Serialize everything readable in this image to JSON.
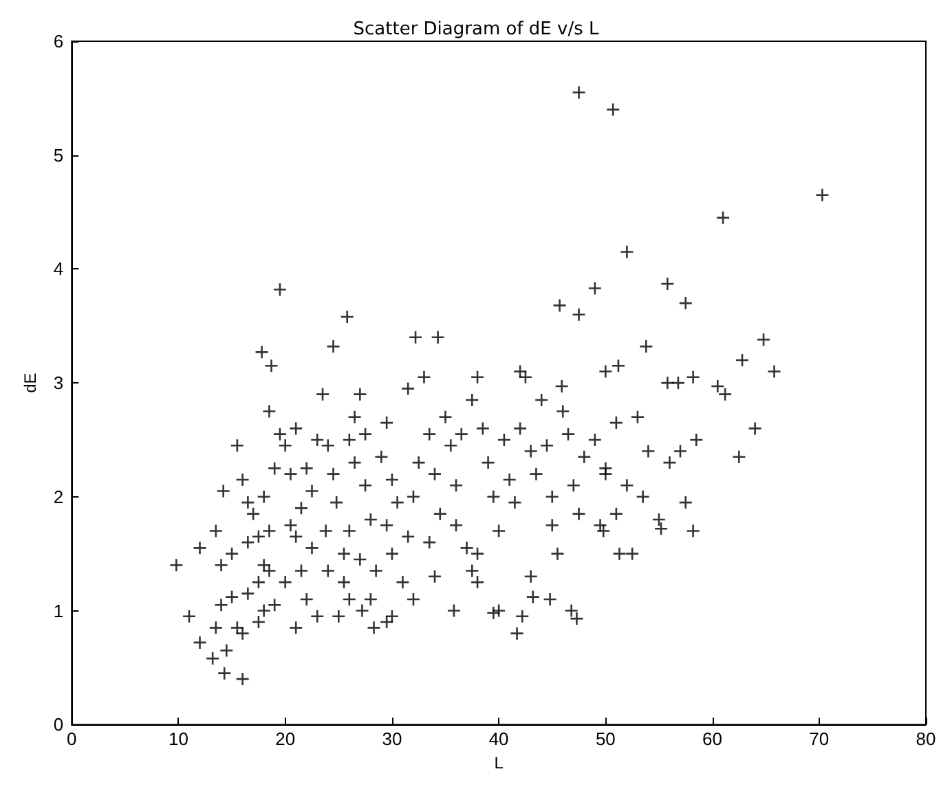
{
  "chart_data": {
    "type": "scatter",
    "title": "Scatter Diagram of dE v/s L",
    "xlabel": "L",
    "ylabel": "dE",
    "marker": "cross",
    "grid": false,
    "xlim": [
      0,
      80
    ],
    "xticks": [
      0,
      10,
      20,
      30,
      40,
      50,
      60,
      70,
      80
    ],
    "ylim": [
      0,
      6
    ],
    "yticks": [
      0,
      1,
      2,
      3,
      4,
      5,
      6
    ],
    "series": [
      {
        "color": "#000000",
        "x": [
          47.5,
          50.7,
          61,
          70.3,
          52,
          19.5,
          49,
          55.8,
          57.5,
          45.7,
          47.5,
          25.8,
          53.8,
          64.8,
          62.8,
          65.8,
          17.8,
          18.7,
          24.5,
          32.2,
          34.3,
          42,
          45.9,
          50,
          51.2,
          55.8,
          56.8,
          58.2,
          60.5,
          61.2,
          64,
          62.5,
          58.5,
          57.5,
          58.2,
          55.2,
          52.5,
          51.3,
          49.5,
          49.8,
          47.3,
          46.8,
          44.8,
          43.2,
          42.2,
          41.7,
          39.5,
          35.8,
          29.5,
          28.3,
          27.2,
          25,
          23,
          21,
          16,
          14.3,
          13.2,
          12,
          11,
          9.8,
          12,
          13.5,
          14.5,
          15.5,
          16,
          17.5,
          18,
          14,
          15,
          16.5,
          14,
          15,
          13.5,
          14.2,
          15.5,
          16,
          17,
          16.5,
          17.5,
          18.5,
          18,
          17.5,
          18.5,
          19,
          18,
          18.5,
          19.5,
          20,
          21,
          20.5,
          20.5,
          21,
          21.5,
          22,
          22.5,
          22.5,
          21.5,
          22,
          23,
          23.5,
          24,
          24.5,
          24.8,
          23.8,
          24,
          25.5,
          26,
          26.5,
          27,
          27.5,
          26.5,
          27.5,
          28,
          26,
          27,
          28.5,
          25.5,
          29,
          29.5,
          30,
          30.5,
          29.5,
          30,
          31,
          31.5,
          32,
          32.5,
          31.5,
          33,
          33.5,
          34,
          34.5,
          33.5,
          34,
          35,
          35.5,
          36,
          36,
          37,
          37.5,
          38,
          37.5,
          38,
          38.5,
          39,
          39.5,
          40,
          40.5,
          41,
          41.5,
          42,
          42.5,
          43,
          43.5,
          44,
          44.5,
          45,
          45,
          45.5,
          46,
          46.5,
          47,
          47.5,
          48,
          49,
          50,
          51,
          52,
          53,
          54,
          53.5,
          56,
          55,
          57,
          51,
          50,
          40,
          43,
          38,
          36.5,
          32,
          30,
          28,
          26,
          20,
          19,
          16.5
        ],
        "values": [
          5.55,
          5.4,
          4.45,
          4.65,
          4.15,
          3.82,
          3.83,
          3.87,
          3.7,
          3.68,
          3.6,
          3.58,
          3.32,
          3.38,
          3.2,
          3.1,
          3.27,
          3.15,
          3.32,
          3.4,
          3.4,
          3.1,
          2.97,
          3.1,
          3.15,
          3.0,
          3.0,
          3.05,
          2.97,
          2.9,
          2.6,
          2.35,
          2.5,
          1.95,
          1.7,
          1.72,
          1.5,
          1.5,
          1.75,
          1.7,
          0.93,
          1.0,
          1.1,
          1.12,
          0.95,
          0.8,
          0.98,
          1.0,
          0.9,
          0.85,
          1.0,
          0.95,
          0.95,
          0.85,
          0.4,
          0.45,
          0.58,
          0.72,
          0.95,
          1.4,
          1.55,
          0.85,
          0.65,
          0.85,
          0.8,
          0.9,
          1.0,
          1.05,
          1.12,
          1.15,
          1.4,
          1.5,
          1.7,
          2.05,
          2.45,
          2.15,
          1.85,
          1.6,
          1.65,
          1.7,
          1.4,
          1.25,
          1.35,
          2.25,
          2.0,
          2.75,
          2.55,
          2.45,
          2.6,
          2.2,
          1.75,
          1.65,
          1.9,
          2.25,
          2.05,
          1.55,
          1.35,
          1.1,
          2.5,
          2.9,
          2.45,
          2.2,
          1.95,
          1.7,
          1.35,
          1.5,
          2.5,
          2.7,
          2.9,
          2.55,
          2.3,
          2.1,
          1.8,
          1.7,
          1.45,
          1.35,
          1.25,
          2.35,
          2.65,
          2.15,
          1.95,
          1.75,
          1.5,
          1.25,
          1.65,
          2.0,
          2.3,
          2.95,
          3.05,
          2.55,
          2.2,
          1.85,
          1.6,
          1.3,
          2.7,
          2.45,
          2.1,
          1.75,
          1.55,
          1.35,
          1.25,
          2.85,
          3.05,
          2.6,
          2.3,
          2.0,
          1.7,
          2.5,
          2.15,
          1.95,
          2.6,
          3.05,
          2.4,
          2.2,
          2.85,
          2.45,
          2.0,
          1.75,
          1.5,
          2.75,
          2.55,
          2.1,
          1.85,
          2.35,
          2.5,
          2.25,
          2.65,
          2.1,
          2.7,
          2.4,
          2.0,
          2.3,
          1.8,
          2.4,
          1.85,
          2.2,
          1.0,
          1.3,
          1.5,
          2.55,
          1.1,
          0.95,
          1.1,
          1.1,
          1.25,
          1.05,
          1.95
        ]
      }
    ]
  }
}
